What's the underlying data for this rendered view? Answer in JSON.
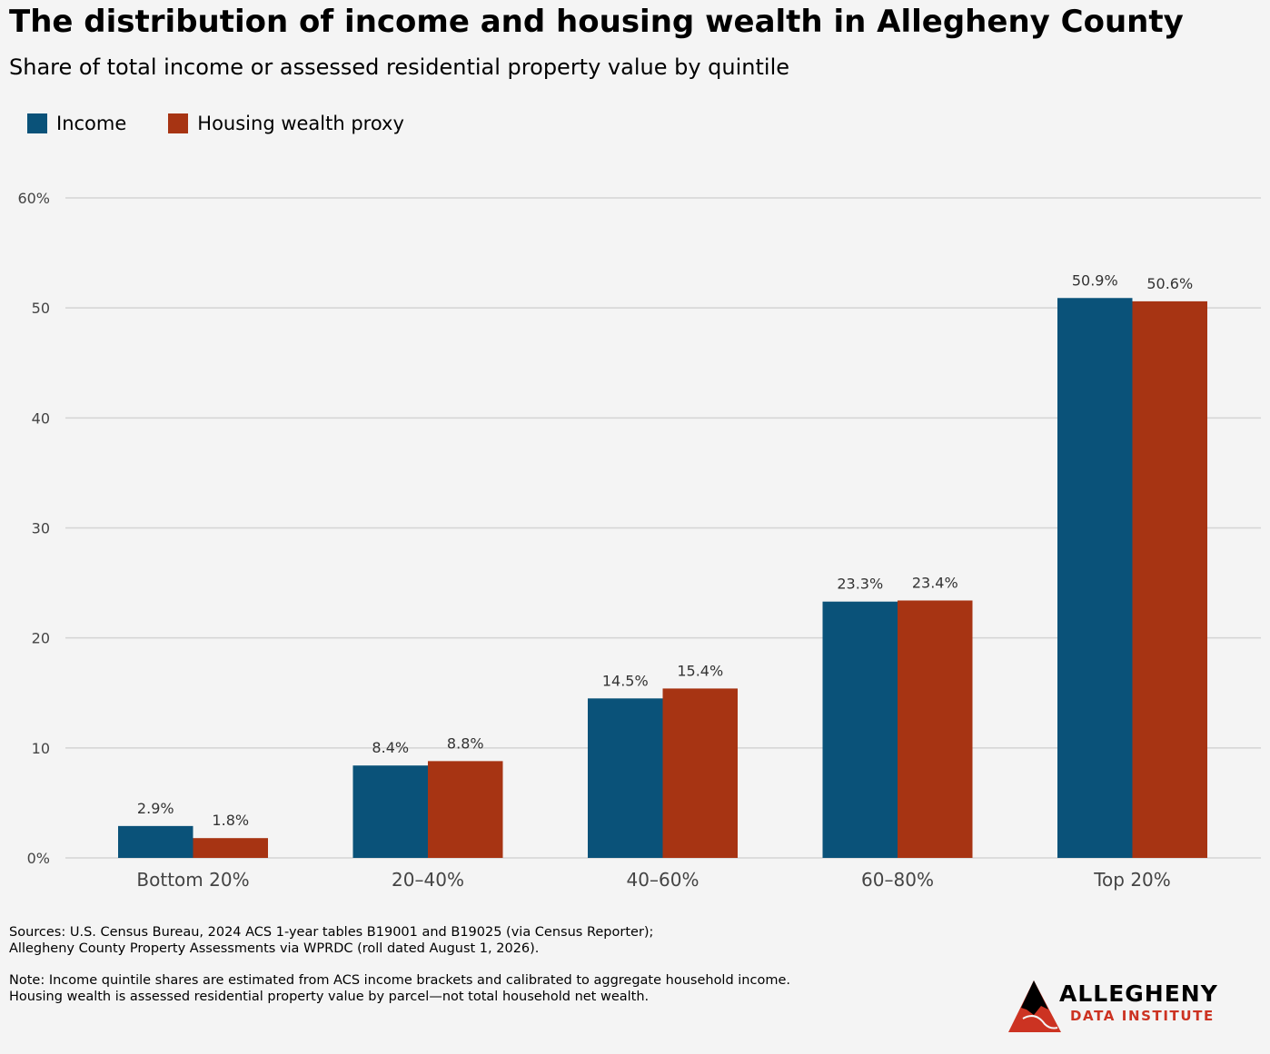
{
  "header": {
    "title": "The distribution of income and housing wealth in Allegheny County",
    "subtitle": "Share of total income or assessed residential property value by quintile"
  },
  "legend": {
    "income_label": "Income",
    "housing_label": "Housing wealth proxy"
  },
  "colors": {
    "income": "#0a5279",
    "housing": "#a73413",
    "grid": "#d4d4d4",
    "background": "#f4f4f4"
  },
  "chart_data": {
    "type": "bar",
    "categories": [
      "Bottom 20%",
      "20–40%",
      "40–60%",
      "60–80%",
      "Top 20%"
    ],
    "series": [
      {
        "name": "Income",
        "values": [
          2.9,
          8.4,
          14.5,
          23.3,
          50.9
        ],
        "labels": [
          "2.9%",
          "8.4%",
          "14.5%",
          "23.3%",
          "50.9%"
        ]
      },
      {
        "name": "Housing wealth proxy",
        "values": [
          1.8,
          8.8,
          15.4,
          23.4,
          50.6
        ],
        "labels": [
          "1.8%",
          "8.8%",
          "15.4%",
          "23.4%",
          "50.6%"
        ]
      }
    ],
    "ylim": [
      0,
      60
    ],
    "yticks": [
      0,
      10,
      20,
      30,
      40,
      50,
      60
    ],
    "ytick_labels": [
      "0%",
      "10",
      "20",
      "30",
      "40",
      "50",
      "60%"
    ],
    "grid": true,
    "legend_placement": "top-left"
  },
  "footer": {
    "sources": "Sources: U.S. Census Bureau, 2024 ACS 1-year tables B19001 and B19025 (via Census Reporter);\nAllegheny County Property Assessments via WPRDC (roll dated August 1, 2026).",
    "note": "Note: Income quintile shares are estimated from ACS income brackets and calibrated to aggregate household income.\nHousing wealth is assessed residential property value by parcel—not total household net wealth."
  },
  "logo": {
    "line1": "ALLEGHENY",
    "line2": "DATA INSTITUTE"
  }
}
